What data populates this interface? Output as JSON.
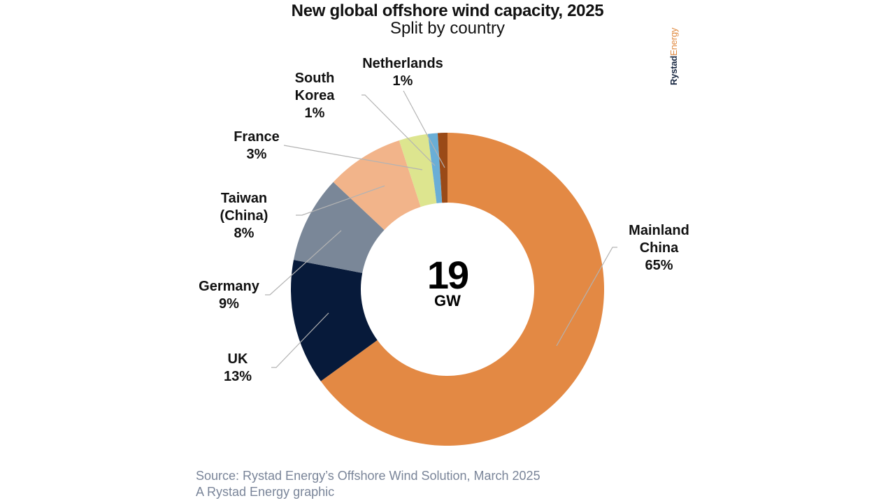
{
  "chart_data": {
    "type": "pie",
    "variant": "donut",
    "title": "New global offshore wind capacity, 2025",
    "subtitle": "Split by country",
    "center_value": "19",
    "center_unit": "GW",
    "slices": [
      {
        "name": "Mainland China",
        "label_lines": [
          "Mainland",
          "China"
        ],
        "pct_label": "65%",
        "value": 65,
        "color": "#e38944"
      },
      {
        "name": "UK",
        "label_lines": [
          "UK"
        ],
        "pct_label": "13%",
        "value": 13,
        "color": "#071a3a"
      },
      {
        "name": "Germany",
        "label_lines": [
          "Germany"
        ],
        "pct_label": "9%",
        "value": 9,
        "color": "#7a8798"
      },
      {
        "name": "Taiwan (China)",
        "label_lines": [
          "Taiwan",
          "(China)"
        ],
        "pct_label": "8%",
        "value": 8,
        "color": "#f2b48a"
      },
      {
        "name": "France",
        "label_lines": [
          "France"
        ],
        "pct_label": "3%",
        "value": 3,
        "color": "#dde58f"
      },
      {
        "name": "South Korea",
        "label_lines": [
          "South",
          "Korea"
        ],
        "pct_label": "1%",
        "value": 1,
        "color": "#6aaed6"
      },
      {
        "name": "Netherlands",
        "label_lines": [
          "Netherlands"
        ],
        "pct_label": "1%",
        "value": 1,
        "color": "#9a4a17"
      }
    ],
    "start": "12 o'clock",
    "direction": "clockwise",
    "legend": "none (direct labels with leader lines)"
  },
  "brand": {
    "part1": "Rystad",
    "part2": "Energy"
  },
  "footer": {
    "source": "Source: Rystad Energy’s Offshore Wind Solution, March 2025",
    "credit": "A Rystad Energy graphic"
  },
  "colors": {
    "leader_line": "#b3b3b3",
    "footer_text": "#7a8599"
  }
}
